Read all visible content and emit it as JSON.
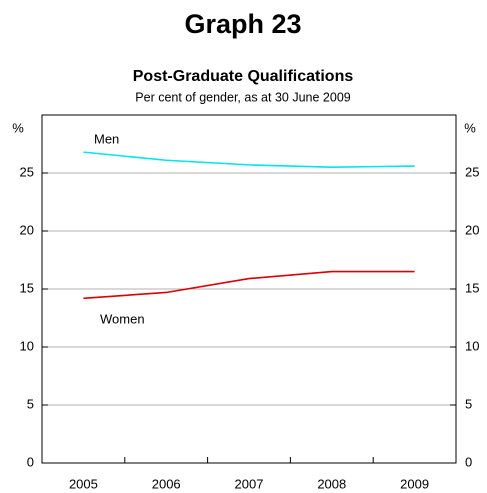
{
  "chart_data": {
    "type": "line",
    "title": "Graph 23",
    "subtitle": "Post-Graduate Qualifications",
    "note": "Per cent of gender, as at 30 June 2009",
    "y_label": "%",
    "y2_label": "%",
    "categories": [
      "2005",
      "2006",
      "2007",
      "2008",
      "2009"
    ],
    "series": [
      {
        "name": "Men",
        "color": "#00e5ee",
        "values": [
          26.8,
          26.1,
          25.7,
          25.5,
          25.6
        ]
      },
      {
        "name": "Women",
        "color": "#dd0000",
        "values": [
          14.2,
          14.7,
          15.9,
          16.5,
          16.5
        ]
      }
    ],
    "ylim": [
      0,
      30
    ],
    "yticks": [
      0,
      5,
      10,
      15,
      20,
      25
    ],
    "y2lim": [
      0,
      30
    ],
    "y2ticks": [
      0,
      5,
      10,
      15,
      20,
      25
    ],
    "grid": true
  }
}
